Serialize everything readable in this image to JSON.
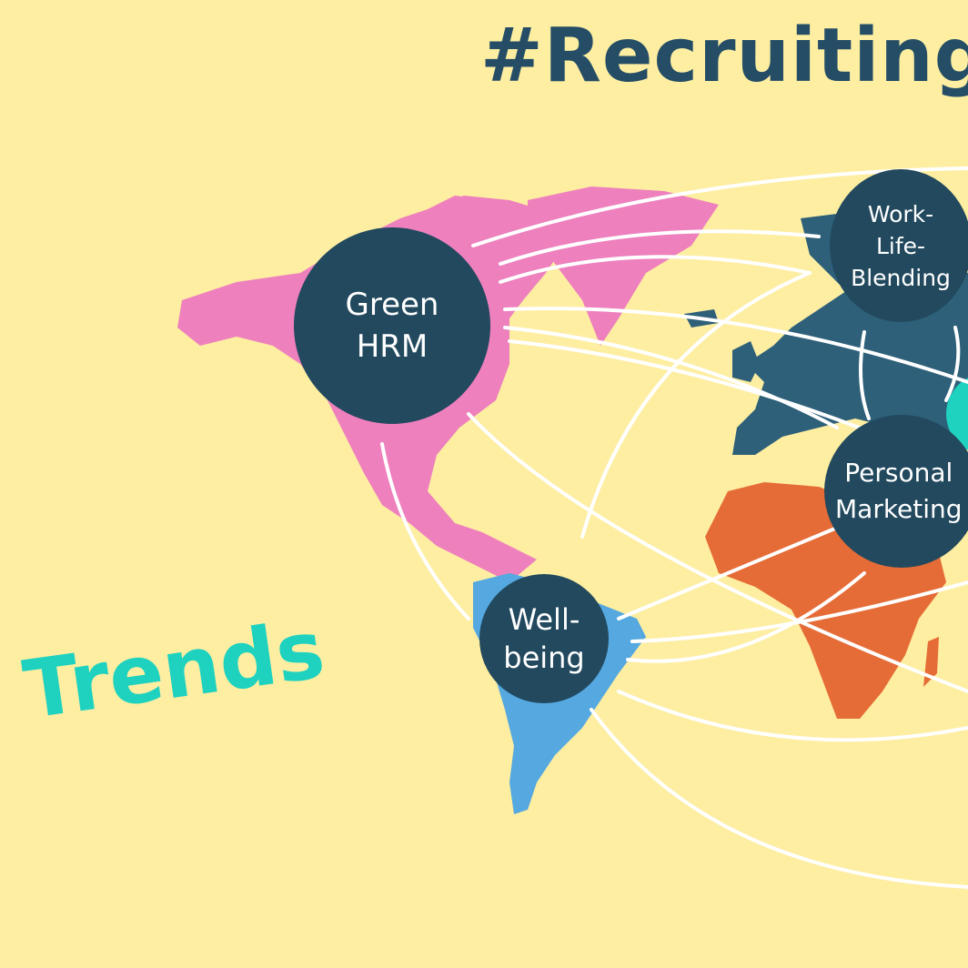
{
  "title": "#Recruiting",
  "subtitle": "Trends",
  "nodes": {
    "green_hrm": "Green\nHRM",
    "work_life": "Work-\nLife-\nBlending",
    "personal_marketing": "Personal\nMarketing",
    "well_being": "Well-\nbeing"
  },
  "colors": {
    "background": "#fdeea2",
    "node": "#22495e",
    "north_america": "#ee80bd",
    "south_america": "#55a8e0",
    "europe": "#2e6079",
    "africa": "#e66c37",
    "accent": "#1fd2c0"
  }
}
